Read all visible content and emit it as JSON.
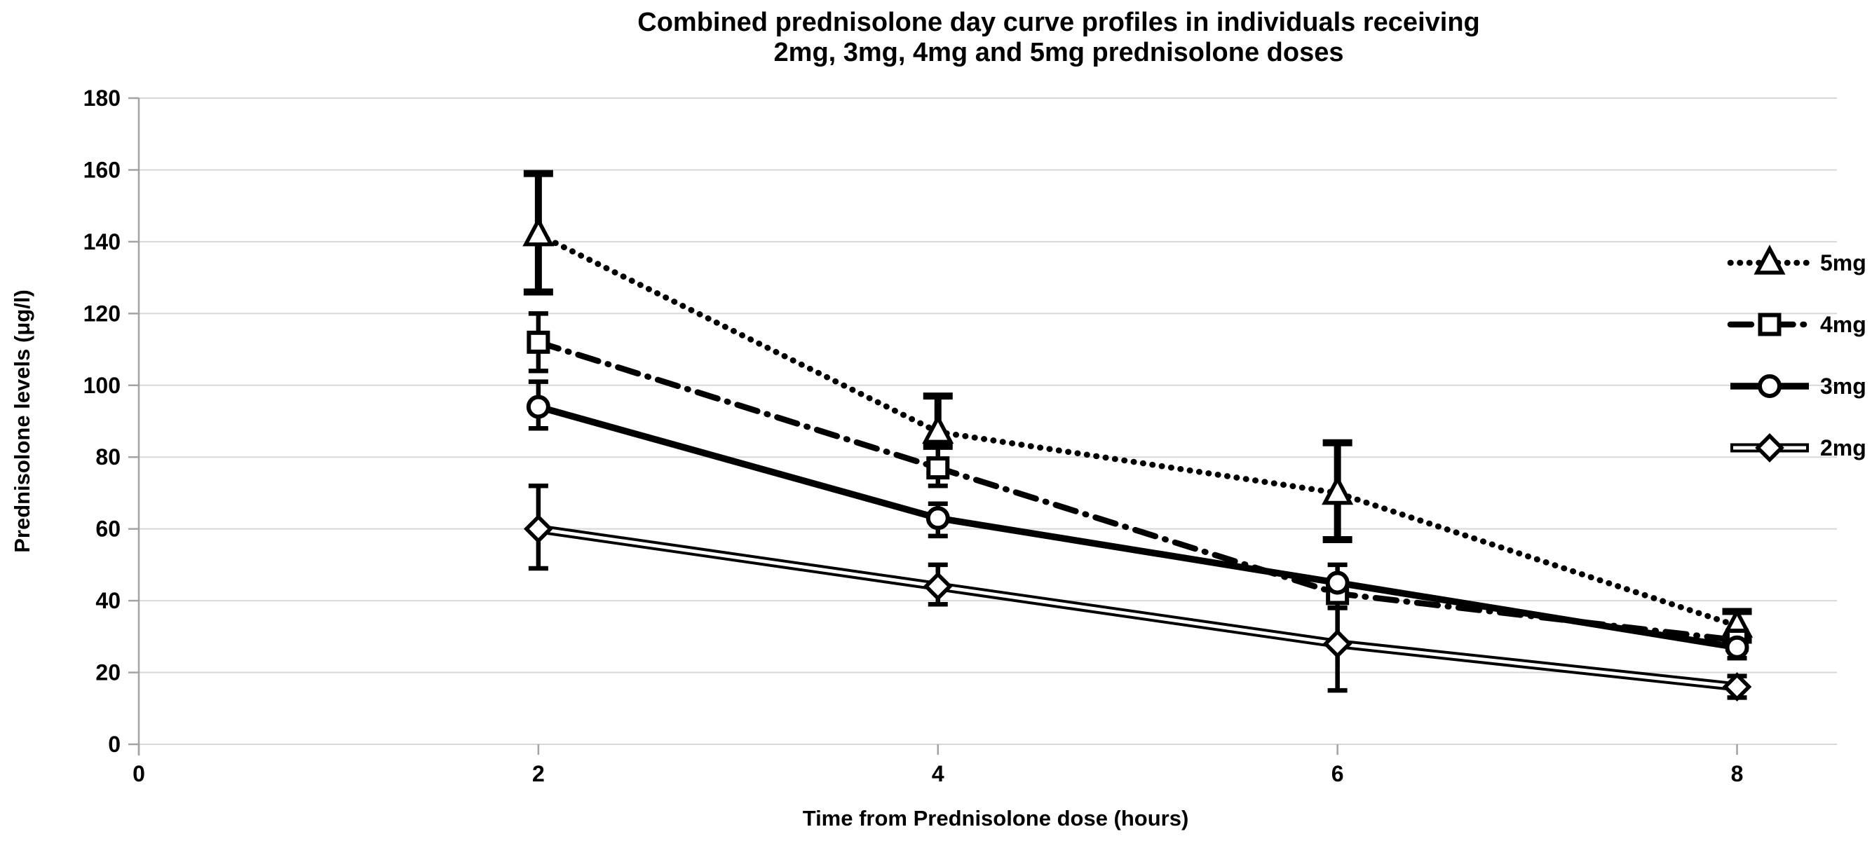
{
  "chart_data": {
    "type": "line",
    "title": "Combined prednisolone day curve profiles in individuals receiving 2mg, 3mg, 4mg and 5mg prednisolone doses",
    "title_line1": "Combined prednisolone day curve profiles in individuals receiving",
    "title_line2": "2mg, 3mg, 4mg and 5mg prednisolone doses",
    "xlabel": "Time from Prednisolone dose (hours)",
    "ylabel": "Prednisolone levels (μg/l)",
    "x": [
      2,
      4,
      6,
      8
    ],
    "xticks": [
      0,
      2,
      4,
      6,
      8
    ],
    "xlim": [
      0,
      8.5
    ],
    "ylim": [
      0,
      180
    ],
    "ytick_step": 20,
    "grid": "horizontal",
    "error_bars": true,
    "legend_position": "right-inside",
    "series": [
      {
        "name": "5mg",
        "marker": "triangle",
        "line_style": "dotted",
        "error_bar_weight": "heavy",
        "values": [
          142,
          87,
          70,
          33
        ],
        "err_low": [
          126,
          83,
          57,
          29
        ],
        "err_high": [
          159,
          97,
          84,
          37
        ]
      },
      {
        "name": "4mg",
        "marker": "square",
        "line_style": "dashdot",
        "error_bar_weight": "light",
        "values": [
          112,
          77,
          42,
          29
        ],
        "err_low": [
          104,
          72,
          38,
          26
        ],
        "err_high": [
          120,
          83,
          46,
          32
        ]
      },
      {
        "name": "3mg",
        "marker": "circle",
        "line_style": "solid",
        "error_bar_weight": "light",
        "values": [
          94,
          63,
          45,
          27
        ],
        "err_low": [
          88,
          58,
          41,
          24
        ],
        "err_high": [
          101,
          67,
          50,
          30
        ]
      },
      {
        "name": "2mg",
        "marker": "diamond",
        "line_style": "double",
        "error_bar_weight": "light",
        "values": [
          60,
          44,
          28,
          16
        ],
        "err_low": [
          49,
          39,
          15,
          13
        ],
        "err_high": [
          72,
          50,
          38,
          19
        ]
      }
    ],
    "colors": {
      "ink": "#000000",
      "marker_fill": "#ffffff",
      "gridline": "#d7d7d7",
      "axis": "#a3a3a3",
      "background": "#ffffff"
    }
  }
}
